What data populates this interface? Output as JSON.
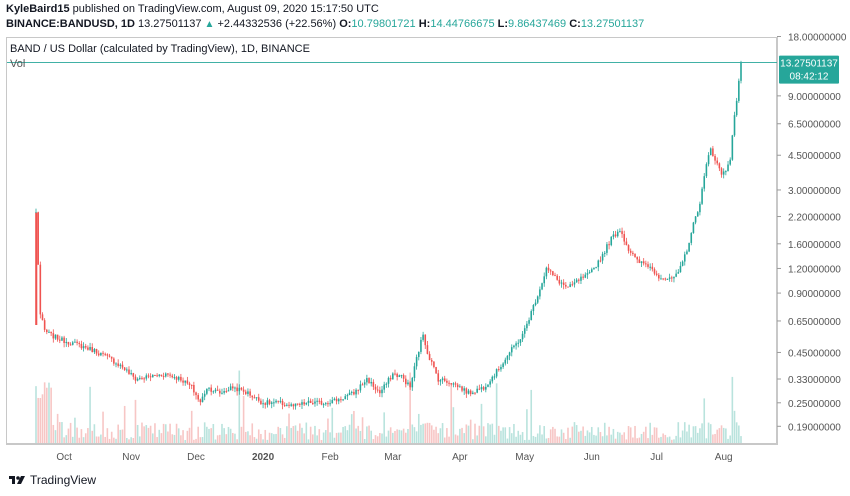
{
  "header": {
    "author": "KyleBaird15",
    "published_text": "published on TradingView.com, August 09, 2020 15:17:50 UTC",
    "symbol": "BINANCE:BANDUSD, 1D",
    "last": "13.27501137",
    "change": "+2.44332536 (+22.56%)",
    "o_label": "O:",
    "o_value": "10.79801721",
    "h_label": "H:",
    "h_value": "14.44766675",
    "l_label": "L:",
    "l_value": "9.86437469",
    "c_label": "C:",
    "c_value": "13.27501137"
  },
  "pane": {
    "title": "BAND / US Dollar (calculated by TradingView), 1D, BINANCE",
    "vol_label": "Vol"
  },
  "price_tag": {
    "price": "13.27501137",
    "countdown": "08:42:12"
  },
  "footer": {
    "brand": "TradingView"
  },
  "colors": {
    "up": "#26a69a",
    "down": "#ef5350",
    "up_vol": "#b9e3dd",
    "down_vol": "#f7c6c5",
    "grid": "#e6e6e6",
    "axis_text": "#555555"
  },
  "chart_data": {
    "type": "candlestick",
    "y_scale": "log",
    "y_ticks": [
      "18.00000000",
      "13.27501137",
      "9.00000000",
      "6.50000000",
      "4.50000000",
      "3.00000000",
      "2.20000000",
      "1.60000000",
      "1.20000000",
      "0.90000000",
      "0.65000000",
      "0.45000000",
      "0.33000000",
      "0.25000000",
      "0.19000000"
    ],
    "y_tick_values": [
      18.0,
      13.275,
      9.0,
      6.5,
      4.5,
      3.0,
      2.2,
      1.6,
      1.2,
      0.9,
      0.65,
      0.45,
      0.33,
      0.25,
      0.19
    ],
    "x_ticks": [
      "Oct",
      "Nov",
      "Dec",
      "2020",
      "Feb",
      "Mar",
      "Apr",
      "May",
      "Jun",
      "Jul",
      "Aug"
    ],
    "x_tick_bold": [
      false,
      false,
      false,
      true,
      false,
      false,
      false,
      false,
      false,
      false,
      false
    ],
    "x_tick_dates": [
      "2019-10-01",
      "2019-11-01",
      "2019-12-01",
      "2020-01-01",
      "2020-02-01",
      "2020-03-01",
      "2020-04-01",
      "2020-05-01",
      "2020-06-01",
      "2020-07-01",
      "2020-08-01"
    ],
    "first_date": "2019-09-18",
    "last_date": "2020-08-09",
    "series": [
      {
        "date": "2019-09-18",
        "close": 2.3
      },
      {
        "date": "2019-09-20",
        "close": 0.7
      },
      {
        "date": "2019-09-22",
        "close": 0.58
      },
      {
        "date": "2019-09-25",
        "close": 0.55
      },
      {
        "date": "2019-09-30",
        "close": 0.52
      },
      {
        "date": "2019-10-08",
        "close": 0.49
      },
      {
        "date": "2019-10-15",
        "close": 0.46
      },
      {
        "date": "2019-10-22",
        "close": 0.42
      },
      {
        "date": "2019-10-28",
        "close": 0.38
      },
      {
        "date": "2019-11-03",
        "close": 0.33
      },
      {
        "date": "2019-11-10",
        "close": 0.34
      },
      {
        "date": "2019-11-17",
        "close": 0.35
      },
      {
        "date": "2019-11-24",
        "close": 0.33
      },
      {
        "date": "2019-11-29",
        "close": 0.3
      },
      {
        "date": "2019-12-03",
        "close": 0.25
      },
      {
        "date": "2019-12-06",
        "close": 0.3
      },
      {
        "date": "2019-12-12",
        "close": 0.28
      },
      {
        "date": "2019-12-18",
        "close": 0.3
      },
      {
        "date": "2019-12-25",
        "close": 0.28
      },
      {
        "date": "2020-01-01",
        "close": 0.25
      },
      {
        "date": "2020-01-08",
        "close": 0.25
      },
      {
        "date": "2020-01-15",
        "close": 0.24
      },
      {
        "date": "2020-01-22",
        "close": 0.25
      },
      {
        "date": "2020-01-29",
        "close": 0.25
      },
      {
        "date": "2020-02-05",
        "close": 0.26
      },
      {
        "date": "2020-02-12",
        "close": 0.28
      },
      {
        "date": "2020-02-18",
        "close": 0.33
      },
      {
        "date": "2020-02-24",
        "close": 0.28
      },
      {
        "date": "2020-03-01",
        "close": 0.35
      },
      {
        "date": "2020-03-05",
        "close": 0.34
      },
      {
        "date": "2020-03-09",
        "close": 0.3
      },
      {
        "date": "2020-03-12",
        "close": 0.42
      },
      {
        "date": "2020-03-15",
        "close": 0.56
      },
      {
        "date": "2020-03-17",
        "close": 0.45
      },
      {
        "date": "2020-03-22",
        "close": 0.33
      },
      {
        "date": "2020-03-27",
        "close": 0.32
      },
      {
        "date": "2020-04-01",
        "close": 0.3
      },
      {
        "date": "2020-04-05",
        "close": 0.28
      },
      {
        "date": "2020-04-12",
        "close": 0.3
      },
      {
        "date": "2020-04-18",
        "close": 0.36
      },
      {
        "date": "2020-04-24",
        "close": 0.45
      },
      {
        "date": "2020-04-30",
        "close": 0.55
      },
      {
        "date": "2020-05-04",
        "close": 0.72
      },
      {
        "date": "2020-05-08",
        "close": 0.95
      },
      {
        "date": "2020-05-11",
        "close": 1.2
      },
      {
        "date": "2020-05-16",
        "close": 1.05
      },
      {
        "date": "2020-05-21",
        "close": 0.95
      },
      {
        "date": "2020-05-26",
        "close": 1.05
      },
      {
        "date": "2020-05-31",
        "close": 1.12
      },
      {
        "date": "2020-06-05",
        "close": 1.35
      },
      {
        "date": "2020-06-10",
        "close": 1.7
      },
      {
        "date": "2020-06-14",
        "close": 1.9
      },
      {
        "date": "2020-06-18",
        "close": 1.5
      },
      {
        "date": "2020-06-22",
        "close": 1.3
      },
      {
        "date": "2020-06-27",
        "close": 1.25
      },
      {
        "date": "2020-07-02",
        "close": 1.1
      },
      {
        "date": "2020-07-07",
        "close": 1.05
      },
      {
        "date": "2020-07-11",
        "close": 1.12
      },
      {
        "date": "2020-07-15",
        "close": 1.5
      },
      {
        "date": "2020-07-18",
        "close": 2.0
      },
      {
        "date": "2020-07-21",
        "close": 2.6
      },
      {
        "date": "2020-07-24",
        "close": 4.0
      },
      {
        "date": "2020-07-26",
        "close": 4.9
      },
      {
        "date": "2020-07-28",
        "close": 4.3
      },
      {
        "date": "2020-07-31",
        "close": 3.6
      },
      {
        "date": "2020-08-02",
        "close": 3.8
      },
      {
        "date": "2020-08-04",
        "close": 4.4
      },
      {
        "date": "2020-08-06",
        "close": 7.0
      },
      {
        "date": "2020-08-08",
        "close": 10.8
      },
      {
        "date": "2020-08-09",
        "close": 13.275
      }
    ]
  }
}
